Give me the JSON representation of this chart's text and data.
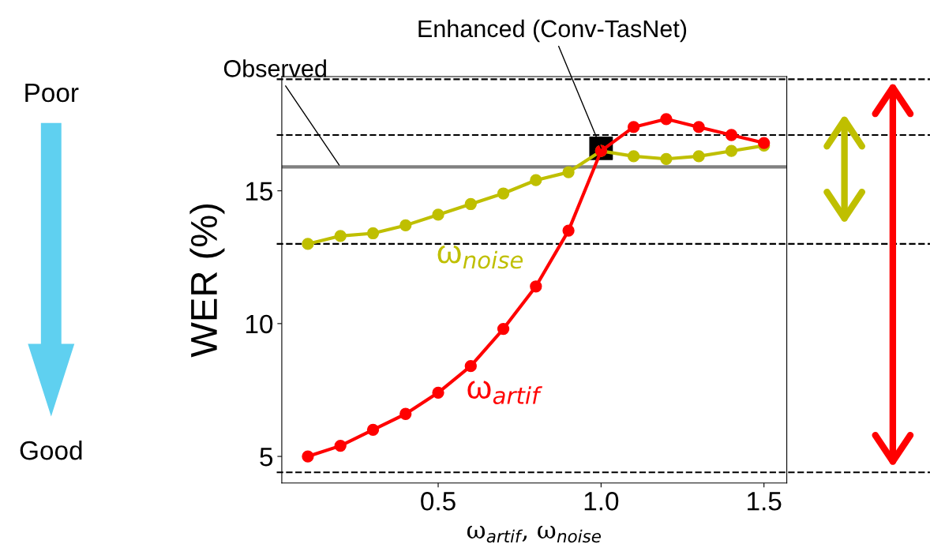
{
  "chart_data": {
    "type": "line",
    "xlabel": "ω$_{artif}$, ω$_{noise}$",
    "ylabel": "WER (%)",
    "x": [
      0.1,
      0.2,
      0.3,
      0.4,
      0.5,
      0.6,
      0.7,
      0.8,
      0.9,
      1.0,
      1.1,
      1.2,
      1.3,
      1.4,
      1.5
    ],
    "series": [
      {
        "name": "ω$_{noise}$",
        "color": "#bfbf00",
        "values": [
          13.0,
          13.3,
          13.4,
          13.7,
          14.1,
          14.5,
          14.9,
          15.4,
          15.7,
          16.5,
          16.3,
          16.2,
          16.3,
          16.5,
          16.7
        ]
      },
      {
        "name": "ω$_{artif}$",
        "color": "#ff0000",
        "values": [
          5.0,
          5.4,
          6.0,
          6.6,
          7.4,
          8.4,
          9.8,
          11.4,
          13.5,
          16.5,
          17.4,
          17.7,
          17.4,
          17.1,
          16.8
        ]
      },
      {
        "type": "scatter",
        "marker": "square",
        "color": "#000000",
        "x": [
          1.0
        ],
        "values": [
          16.6
        ]
      }
    ],
    "xlim": [
      0.02,
      1.57
    ],
    "ylim": [
      4.0,
      19.3
    ],
    "xticks": [
      {
        "value": 0.5,
        "label": "0.5"
      },
      {
        "value": 1.0,
        "label": "1.0"
      },
      {
        "value": 1.5,
        "label": "1.5"
      }
    ],
    "yticks": [
      5,
      10,
      15
    ],
    "ref_lines": [
      {
        "axis": "y",
        "value": 15.9,
        "label": "Observed",
        "color": "#808080",
        "line_style": "solid"
      },
      {
        "axis": "y",
        "value": 19.2,
        "color": "#000000",
        "line_style": "dashed"
      },
      {
        "axis": "y",
        "value": 17.1,
        "color": "#000000",
        "line_style": "dashed"
      },
      {
        "axis": "y",
        "value": 13.0,
        "color": "#000000",
        "line_style": "dashed"
      },
      {
        "axis": "y",
        "value": 4.4,
        "color": "#000000",
        "line_style": "dashed"
      }
    ],
    "annotations": [
      {
        "text": "Enhanced (Conv-TasNet)",
        "x": 1.0,
        "y": 16.6
      },
      "Poor",
      "Good"
    ],
    "marker": "circle",
    "line_style": "solid",
    "grid": false
  }
}
